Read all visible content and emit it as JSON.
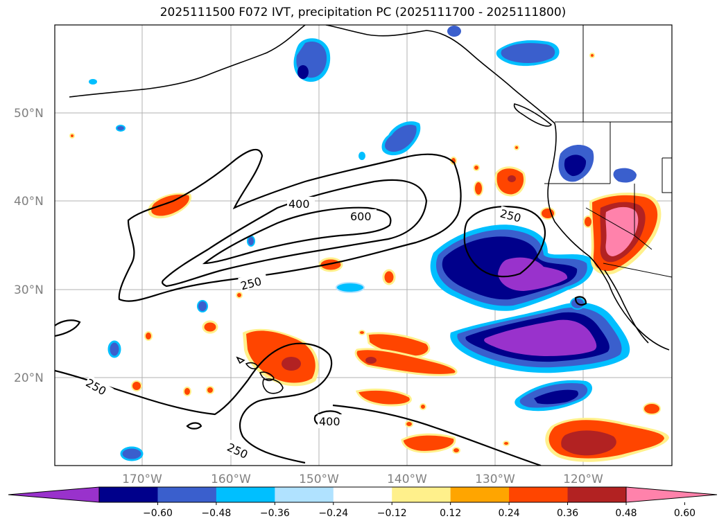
{
  "title": "2025111500 F072 IVT, precipitation PC (2025111700 - 2025111800)",
  "map": {
    "lat_labels": [
      "50°N",
      "40°N",
      "30°N",
      "20°N"
    ],
    "lon_labels": [
      "170°W",
      "160°W",
      "150°W",
      "140°W",
      "130°W",
      "120°W"
    ],
    "contour_labels": [
      "400",
      "600",
      "250",
      "250",
      "400",
      "250",
      "250"
    ],
    "gridlines": true,
    "projection": "PlateCarree",
    "lon_range": [
      "~178°W",
      "~108°W"
    ],
    "lat_range": [
      "~10°N",
      "~60°N"
    ]
  },
  "colorbar": {
    "orientation": "horizontal",
    "extend": "both",
    "colors": [
      "#9932cc",
      "#00008b",
      "#3a5fcd",
      "#00bfff",
      "#b0e2ff",
      "#ffffff",
      "#fff08b",
      "#ffa500",
      "#ff4500",
      "#b22222",
      "#ff82ab"
    ],
    "tick_labels": [
      "−0.60",
      "−0.48",
      "−0.36",
      "−0.24",
      "−0.12",
      "0.12",
      "0.24",
      "0.36",
      "0.48",
      "0.60"
    ]
  }
}
